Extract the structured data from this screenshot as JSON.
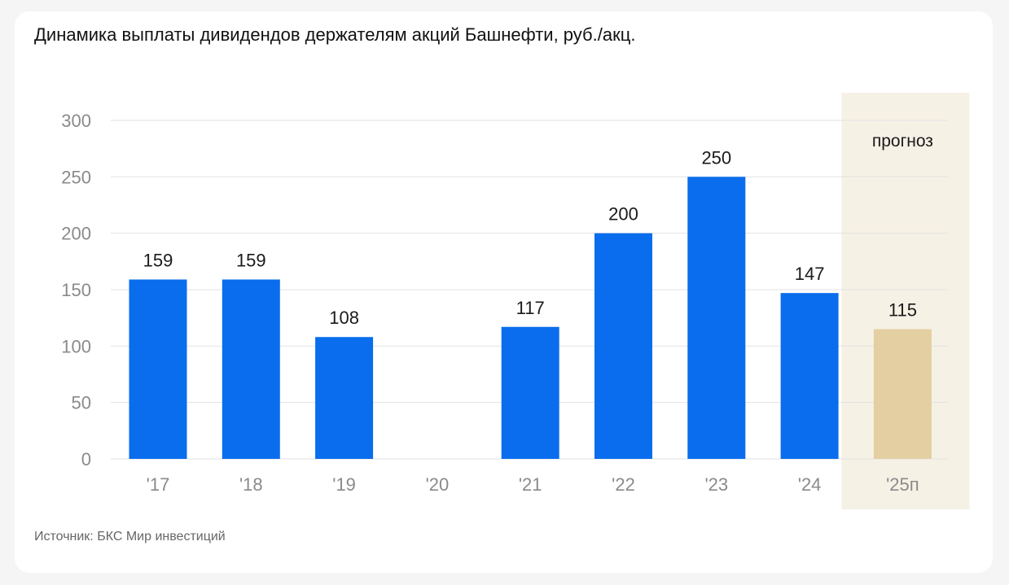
{
  "chart_data": {
    "type": "bar",
    "title": "Динамика выплаты дивидендов держателям акций Башнефти, руб./акц.",
    "categories": [
      "'17",
      "'18",
      "'19",
      "'20",
      "'21",
      "'22",
      "'23",
      "'24",
      "'25п"
    ],
    "values": [
      159,
      159,
      108,
      0,
      117,
      200,
      250,
      147,
      115
    ],
    "value_labels": [
      "159",
      "159",
      "108",
      "",
      "117",
      "200",
      "250",
      "147",
      "115"
    ],
    "forecast_flags": [
      false,
      false,
      false,
      false,
      false,
      false,
      false,
      false,
      true
    ],
    "forecast_label": "прогноз",
    "ylim": [
      0,
      300
    ],
    "yticks": [
      0,
      50,
      100,
      150,
      200,
      250,
      300
    ],
    "grid": true,
    "colors": {
      "actual": "#0a6ded",
      "forecast_bar": "#e4cfa3",
      "forecast_band": "#f6f1e5",
      "grid": "#e2e2e2"
    }
  },
  "source": "Источник: БКС Мир инвестиций"
}
